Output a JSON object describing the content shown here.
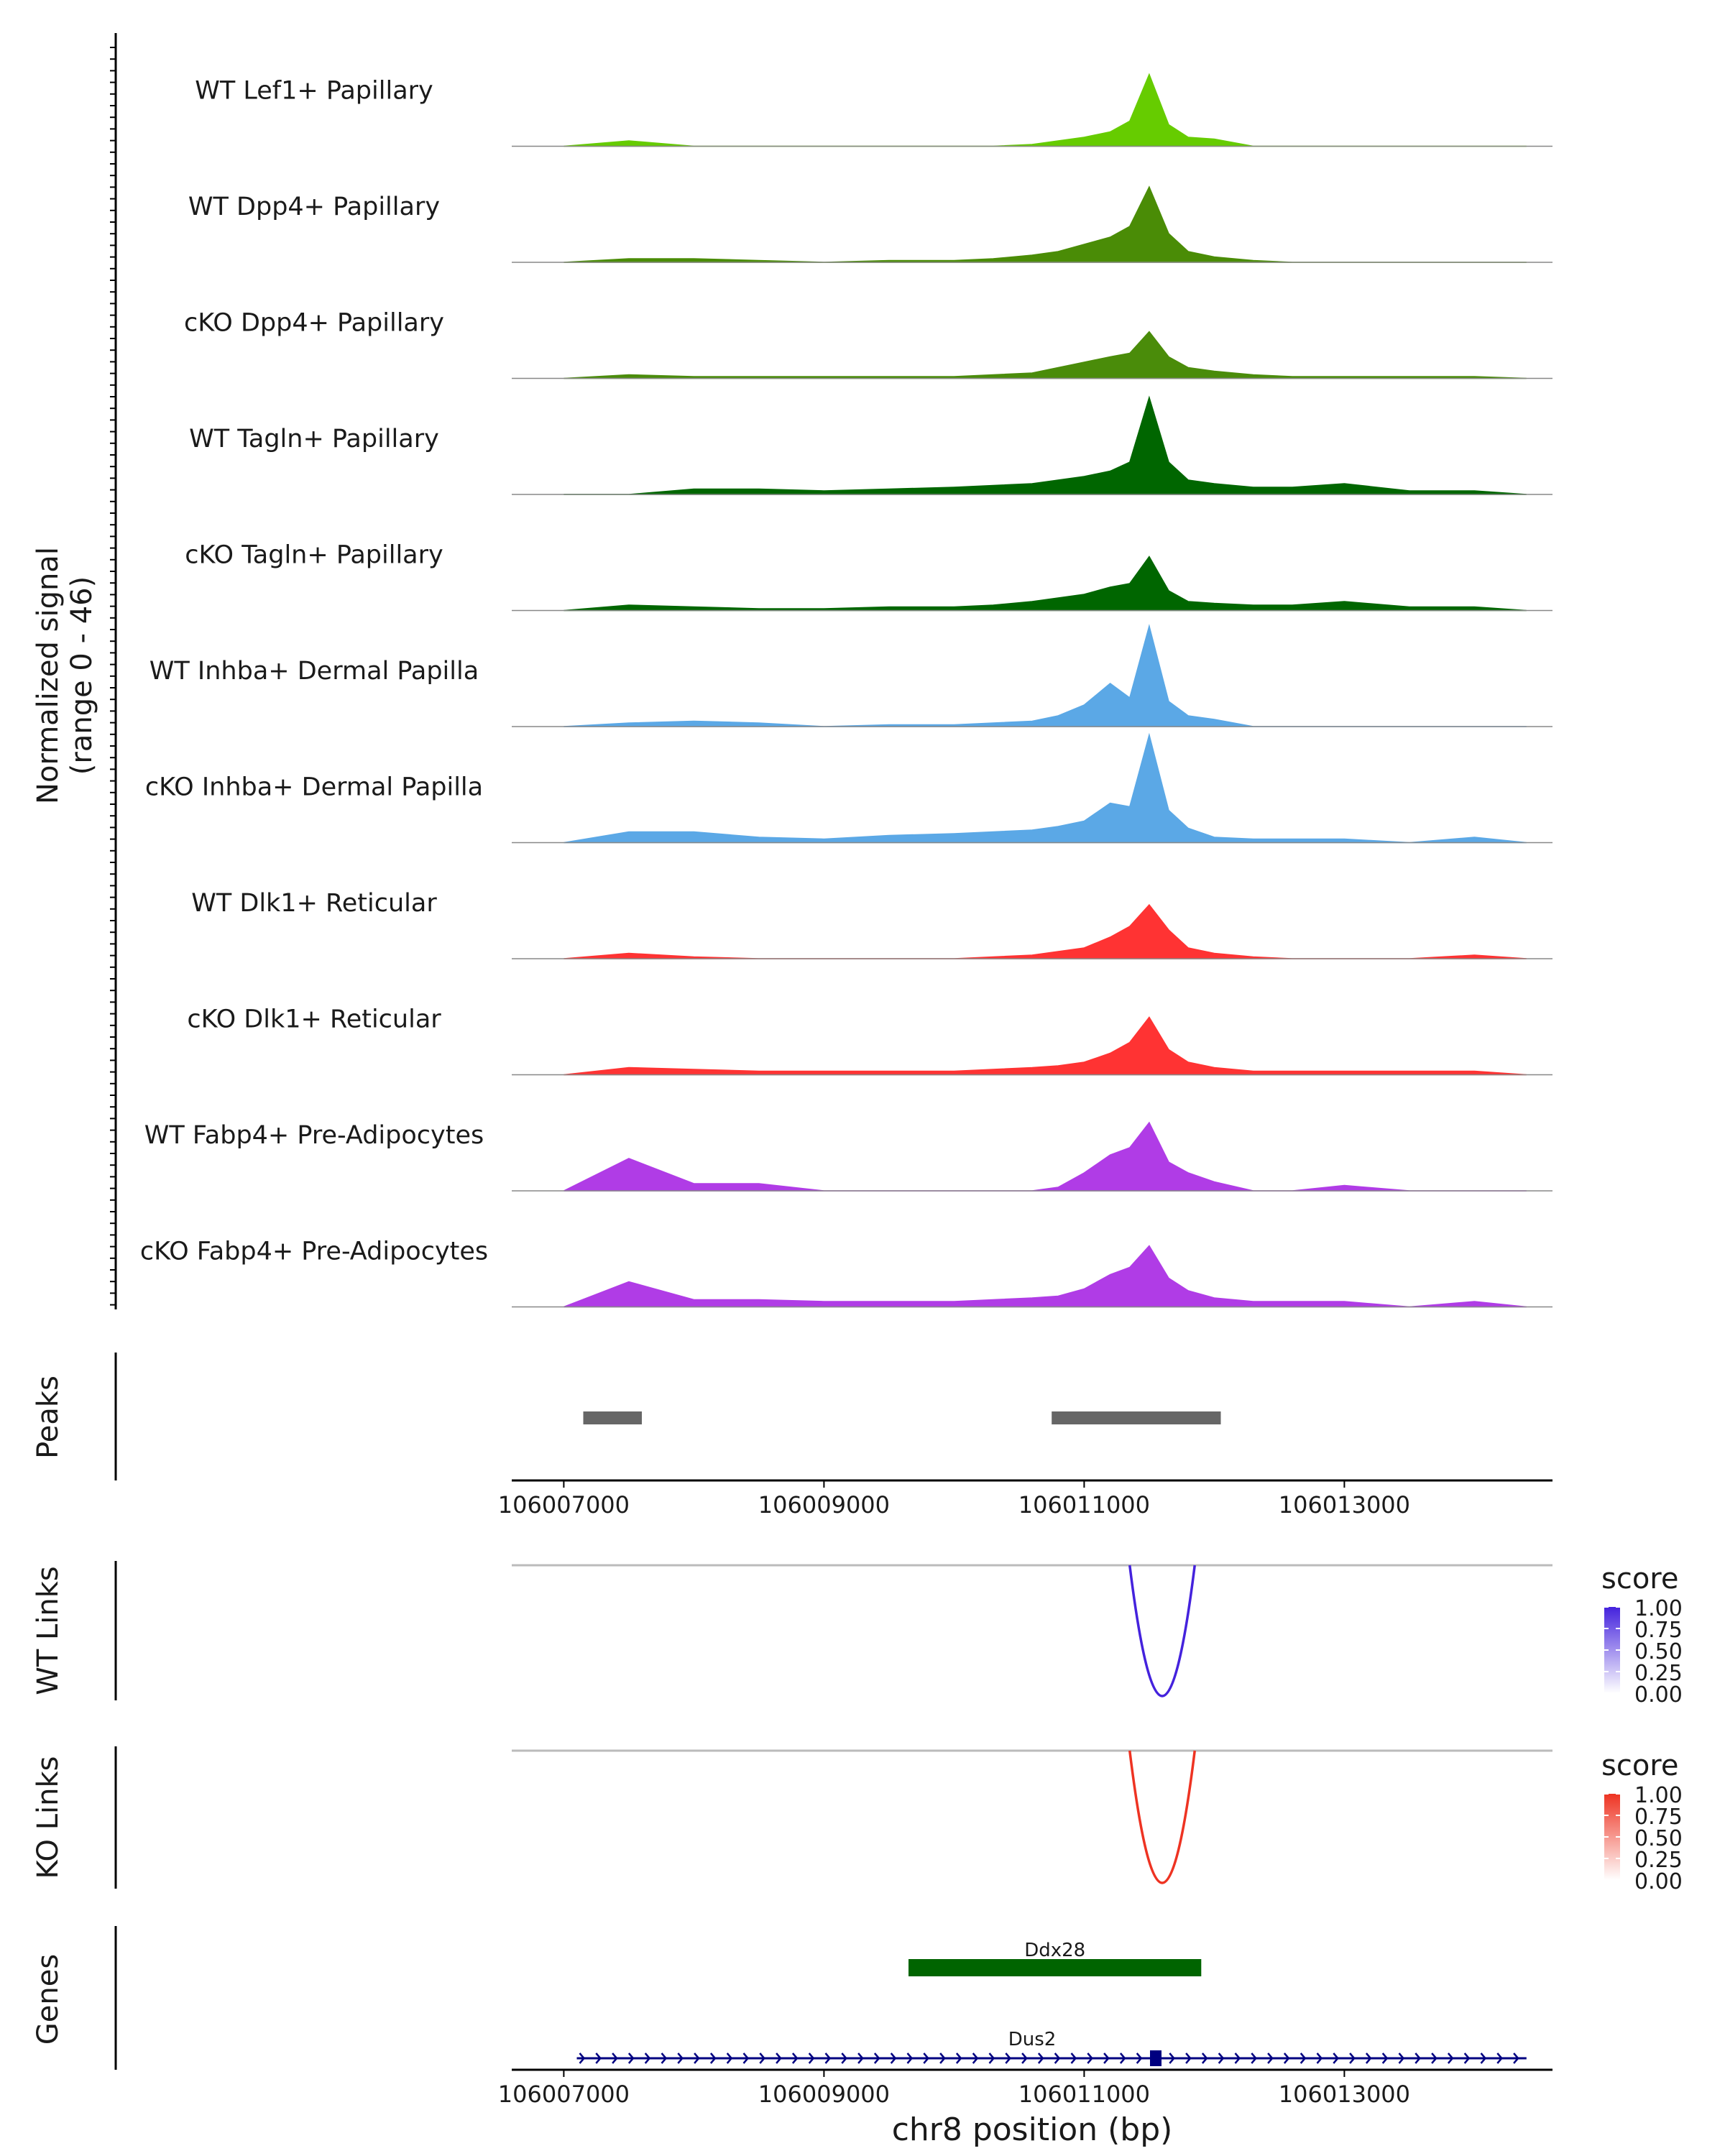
{
  "chart_data": {
    "type": "area",
    "region": "chr8",
    "xlabel": "chr8 position (bp)",
    "xlim": [
      106006600,
      106014600
    ],
    "xticks": [
      106007000,
      106009000,
      106011000,
      106013000
    ],
    "xtick_labels": [
      "106007000",
      "106009000",
      "106011000",
      "106013000"
    ],
    "coverage": {
      "ylabel_line1": "Normalized signal",
      "ylabel_line2": "(range 0 - 46)",
      "ylim": [
        0,
        46
      ],
      "x": [
        106007000,
        106007500,
        106008000,
        106008500,
        106009000,
        106009500,
        106010000,
        106010300,
        106010600,
        106010800,
        106011000,
        106011200,
        106011350,
        106011500,
        106011650,
        106011800,
        106012000,
        106012300,
        106012600,
        106013000,
        106013500,
        106014000,
        106014400
      ],
      "tracks": [
        {
          "name": "WT Lef1+ Papillary",
          "color": "#66cc00",
          "values": [
            0,
            3,
            0,
            0,
            0,
            0,
            0,
            0,
            1,
            3,
            5,
            8,
            14,
            40,
            12,
            5,
            4,
            0,
            0,
            0,
            0,
            0,
            0
          ]
        },
        {
          "name": "WT Dpp4+ Papillary",
          "color": "#4a8c06",
          "values": [
            0,
            2,
            2,
            1,
            0,
            1,
            1,
            2,
            4,
            6,
            10,
            14,
            20,
            42,
            16,
            6,
            3,
            1,
            0,
            0,
            0,
            0,
            0
          ]
        },
        {
          "name": "cKO Dpp4+ Papillary",
          "color": "#4a8c0a",
          "values": [
            0,
            2,
            1,
            1,
            1,
            1,
            1,
            2,
            3,
            6,
            9,
            12,
            14,
            26,
            12,
            6,
            4,
            2,
            1,
            1,
            1,
            1,
            0
          ]
        },
        {
          "name": "WT Tagln+ Papillary",
          "color": "#006600",
          "values": [
            0,
            0,
            3,
            3,
            2,
            3,
            4,
            5,
            6,
            8,
            10,
            13,
            18,
            54,
            18,
            8,
            6,
            4,
            4,
            6,
            2,
            2,
            0
          ]
        },
        {
          "name": "cKO Tagln+ Papillary",
          "color": "#006600",
          "values": [
            0,
            3,
            2,
            1,
            1,
            2,
            2,
            3,
            5,
            7,
            9,
            13,
            15,
            30,
            11,
            5,
            4,
            3,
            3,
            5,
            2,
            2,
            0
          ]
        },
        {
          "name": "WT Inhba+ Dermal Papilla",
          "color": "#5ba8e6",
          "values": [
            0,
            2,
            3,
            2,
            0,
            1,
            1,
            2,
            3,
            6,
            12,
            24,
            16,
            56,
            14,
            6,
            4,
            0,
            0,
            0,
            0,
            0,
            0
          ]
        },
        {
          "name": "cKO Inhba+ Dermal Papilla",
          "color": "#5ba8e6",
          "values": [
            0,
            6,
            6,
            3,
            2,
            4,
            5,
            6,
            7,
            9,
            12,
            22,
            20,
            60,
            18,
            8,
            3,
            2,
            2,
            2,
            0,
            3,
            0
          ]
        },
        {
          "name": "WT Dlk1+ Reticular",
          "color": "#ff3333",
          "values": [
            0,
            3,
            1,
            0,
            0,
            0,
            0,
            1,
            2,
            4,
            6,
            12,
            18,
            30,
            16,
            6,
            3,
            1,
            0,
            0,
            0,
            2,
            0
          ]
        },
        {
          "name": "cKO Dlk1+ Reticular",
          "color": "#ff3333",
          "values": [
            0,
            4,
            3,
            2,
            2,
            2,
            2,
            3,
            4,
            5,
            7,
            12,
            18,
            32,
            14,
            7,
            4,
            2,
            2,
            2,
            2,
            2,
            0
          ]
        },
        {
          "name": "WT Fabp4+ Pre-Adipocytes",
          "color": "#b03ce6",
          "values": [
            0,
            18,
            4,
            4,
            0,
            0,
            0,
            0,
            0,
            2,
            10,
            20,
            24,
            38,
            16,
            10,
            5,
            0,
            0,
            3,
            0,
            0,
            0
          ]
        },
        {
          "name": "cKO Fabp4+ Pre-Adipocytes",
          "color": "#b03ce6",
          "values": [
            0,
            14,
            4,
            4,
            3,
            3,
            3,
            4,
            5,
            6,
            10,
            18,
            22,
            34,
            16,
            9,
            5,
            3,
            3,
            3,
            0,
            3,
            0
          ]
        }
      ]
    },
    "peaks": {
      "label": "Peaks",
      "ranges": [
        [
          106007150,
          106007600
        ],
        [
          106010750,
          106012050
        ]
      ]
    },
    "links": [
      {
        "label": "WT Links",
        "legend_title": "score",
        "color": "#4422dd",
        "start": 106011350,
        "end": 106011850,
        "score": 1.0
      },
      {
        "label": "KO Links",
        "legend_title": "score",
        "color": "#ee3322",
        "start": 106011350,
        "end": 106011850,
        "score": 1.0
      }
    ],
    "legend_ticks": [
      "1.00",
      "0.75",
      "0.50",
      "0.25",
      "0.00"
    ],
    "genes": {
      "label": "Genes",
      "items": [
        {
          "name": "Ddx28",
          "start": 106009650,
          "end": 106011900,
          "color": "#006400"
        },
        {
          "name": "Dus2",
          "start": 106007100,
          "end": 106014400,
          "color": "#000080",
          "exon_at": 106011550
        }
      ]
    }
  }
}
